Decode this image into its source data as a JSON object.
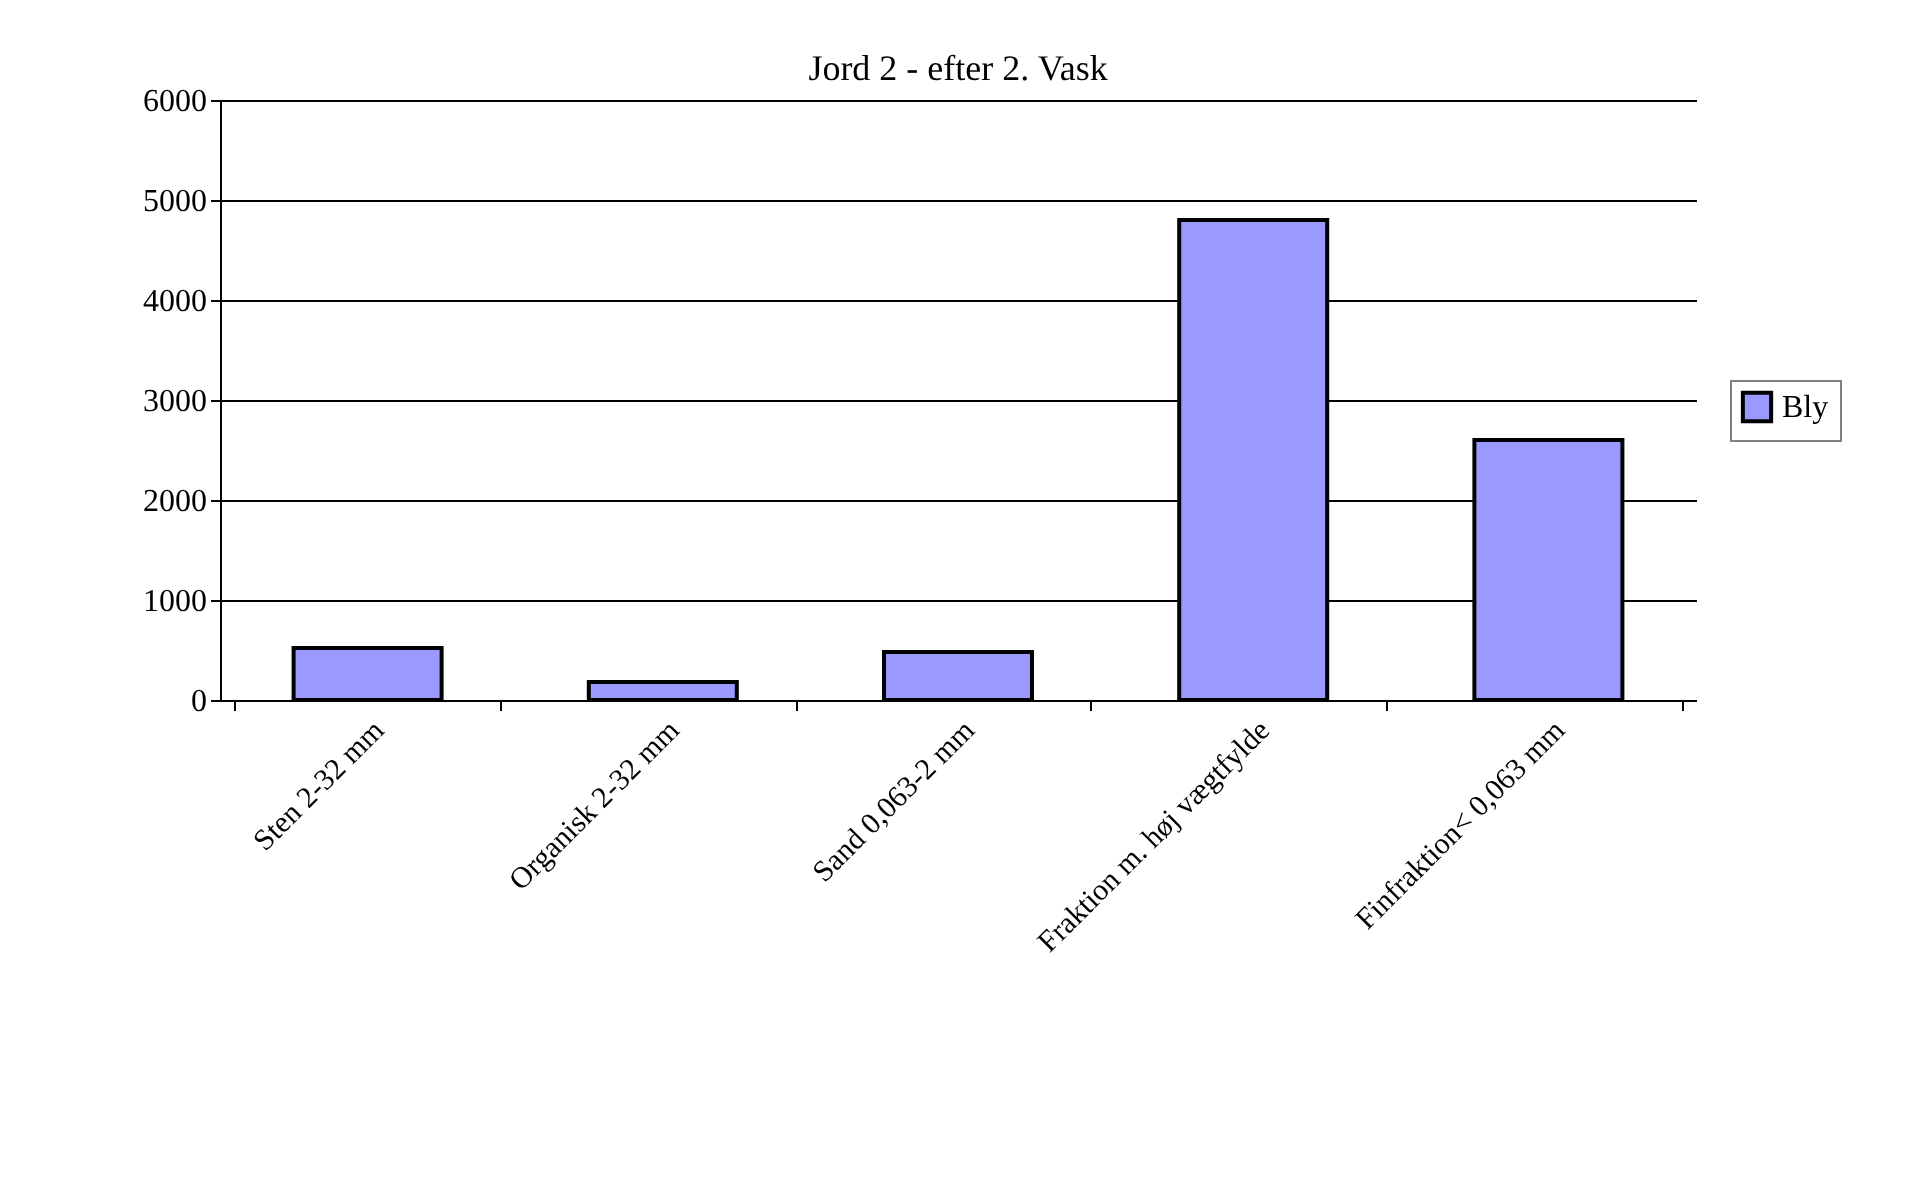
{
  "chart_data": {
    "type": "bar",
    "title": "Jord 2 - efter 2. Vask",
    "categories": [
      "Sten 2-32 mm",
      "Organisk 2-32 mm",
      "Sand 0,063-2 mm",
      "Fraktion m. høj vægtfylde",
      "Finfraktion< 0,063 mm"
    ],
    "series": [
      {
        "name": "Bly",
        "color": "#9999ff",
        "values": [
          520,
          180,
          480,
          4800,
          2600
        ]
      }
    ],
    "ylim": [
      0,
      6000
    ],
    "yticks": [
      0,
      1000,
      2000,
      3000,
      4000,
      5000,
      6000
    ],
    "grid": "y",
    "legend": "right"
  }
}
